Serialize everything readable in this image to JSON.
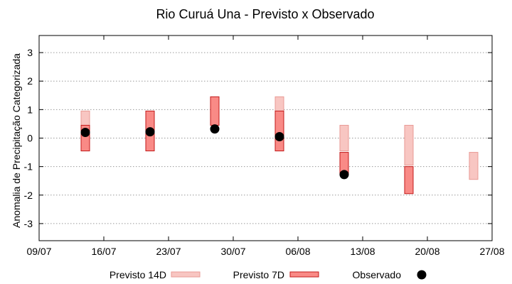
{
  "chart_data": {
    "type": "bar",
    "title": "Rio Curuá Una - Previsto x Observado",
    "xlabel": "",
    "ylabel": "Anomalia de Precipitação Categorizada",
    "ylim": [
      -3.6,
      3.6
    ],
    "yticks": [
      -3,
      -2,
      -1,
      0,
      1,
      2,
      3
    ],
    "xlim": [
      "2024-07-09",
      "2024-08-27"
    ],
    "xticks": [
      {
        "date": "2024-07-09",
        "label": "09/07"
      },
      {
        "date": "2024-07-16",
        "label": "16/07"
      },
      {
        "date": "2024-07-23",
        "label": "23/07"
      },
      {
        "date": "2024-07-30",
        "label": "30/07"
      },
      {
        "date": "2024-08-06",
        "label": "06/08"
      },
      {
        "date": "2024-08-13",
        "label": "13/08"
      },
      {
        "date": "2024-08-20",
        "label": "20/08"
      },
      {
        "date": "2024-08-27",
        "label": "27/08"
      }
    ],
    "grid": "horizontal dotted",
    "legend_position": "bottom",
    "series": [
      {
        "name": "Previsto 14D",
        "style": "range-bar",
        "color": "#f8c6c2",
        "stroke": "#e89a94",
        "points": [
          {
            "date": "2024-07-14",
            "low": -0.45,
            "high": 0.95
          },
          {
            "date": "2024-08-04",
            "low": -0.45,
            "high": 1.45
          },
          {
            "date": "2024-08-11",
            "low": -0.45,
            "high": 0.45
          },
          {
            "date": "2024-08-18",
            "low": -0.95,
            "high": 0.45
          },
          {
            "date": "2024-08-25",
            "low": -1.45,
            "high": -0.5
          }
        ]
      },
      {
        "name": "Previsto 7D",
        "style": "range-bar",
        "color": "#f98a86",
        "stroke": "#c21a1a",
        "points": [
          {
            "date": "2024-07-14",
            "low": -0.45,
            "high": 0.45
          },
          {
            "date": "2024-07-21",
            "low": -0.45,
            "high": 0.95
          },
          {
            "date": "2024-07-28",
            "low": 0.45,
            "high": 1.45
          },
          {
            "date": "2024-08-04",
            "low": -0.45,
            "high": 0.95
          },
          {
            "date": "2024-08-11",
            "low": -1.3,
            "high": -0.5
          },
          {
            "date": "2024-08-18",
            "low": -1.95,
            "high": -1.0
          }
        ]
      },
      {
        "name": "Observado",
        "style": "point",
        "color": "#000000",
        "points": [
          {
            "date": "2024-07-14",
            "value": 0.2
          },
          {
            "date": "2024-07-21",
            "value": 0.22
          },
          {
            "date": "2024-07-28",
            "value": 0.32
          },
          {
            "date": "2024-08-04",
            "value": 0.05
          },
          {
            "date": "2024-08-11",
            "value": -1.28
          }
        ]
      }
    ]
  }
}
